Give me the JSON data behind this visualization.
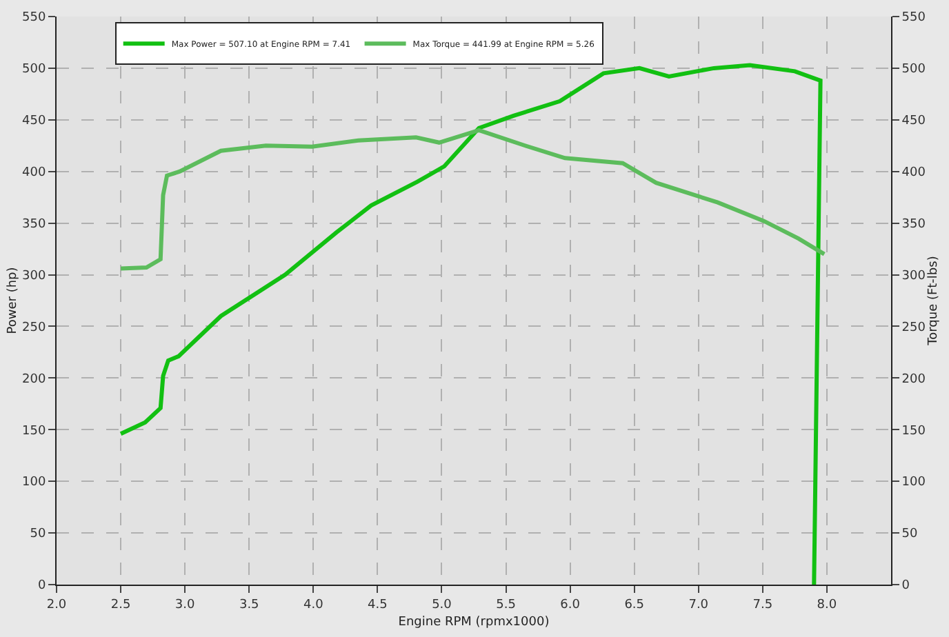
{
  "chart_data": {
    "type": "line",
    "xlabel": "Engine RPM (rpmx1000)",
    "ylabel": "Power (hp)",
    "y2label": "Torque (Ft-lbs)",
    "xlim": [
      2.0,
      8.5
    ],
    "xticks": [
      {
        "value": 2.0,
        "label": "2.0"
      },
      {
        "value": 2.5,
        "label": "2.5"
      },
      {
        "value": 3.0,
        "label": "3.0"
      },
      {
        "value": 3.5,
        "label": "3.5"
      },
      {
        "value": 4.0,
        "label": "4.0"
      },
      {
        "value": 4.5,
        "label": "4.5"
      },
      {
        "value": 5.0,
        "label": "5.0"
      },
      {
        "value": 5.5,
        "label": "5.5"
      },
      {
        "value": 6.0,
        "label": "6.0"
      },
      {
        "value": 6.5,
        "label": "6.5"
      },
      {
        "value": 7.0,
        "label": "7.0"
      },
      {
        "value": 7.5,
        "label": "7.5"
      },
      {
        "value": 8.0,
        "label": "8.0"
      }
    ],
    "ylim": [
      0,
      550
    ],
    "yticks": [
      0,
      50,
      100,
      150,
      200,
      250,
      300,
      350,
      400,
      450,
      500,
      550
    ],
    "y2lim": [
      0,
      550
    ],
    "y2ticks": [
      0,
      50,
      100,
      150,
      200,
      250,
      300,
      350,
      400,
      450,
      500,
      550
    ],
    "grid": true,
    "legend": "top left",
    "marker": "none",
    "line_style": "solid",
    "series": [
      {
        "name": "Max Power = 507.10 at Engine RPM = 7.41",
        "color": "#12c012",
        "x": [
          2.5,
          2.69,
          2.81,
          2.83,
          2.87,
          2.95,
          3.28,
          3.78,
          4.18,
          4.45,
          4.81,
          5.02,
          5.29,
          5.56,
          5.92,
          6.26,
          6.54,
          6.77,
          7.12,
          7.4,
          7.75,
          7.95,
          7.9
        ],
        "values": [
          146,
          157,
          171,
          202,
          217,
          221,
          260,
          300,
          341,
          367,
          390,
          405,
          442,
          454,
          468,
          495,
          500,
          492,
          500,
          503,
          497,
          488,
          0
        ]
      },
      {
        "name": "Max Torque = 441.99 at Engine RPM = 5.26",
        "color": "#5cbc5c",
        "axis": "y2",
        "x": [
          2.5,
          2.7,
          2.81,
          2.83,
          2.86,
          2.96,
          3.28,
          3.63,
          3.99,
          4.35,
          4.8,
          4.98,
          5.29,
          5.65,
          5.96,
          6.41,
          6.67,
          7.15,
          7.51,
          7.78,
          7.98
        ],
        "values": [
          306,
          307,
          315,
          377,
          396,
          400,
          420,
          425,
          424,
          430,
          433,
          428,
          440,
          425,
          413,
          408,
          389,
          370,
          352,
          335,
          320
        ]
      }
    ]
  }
}
